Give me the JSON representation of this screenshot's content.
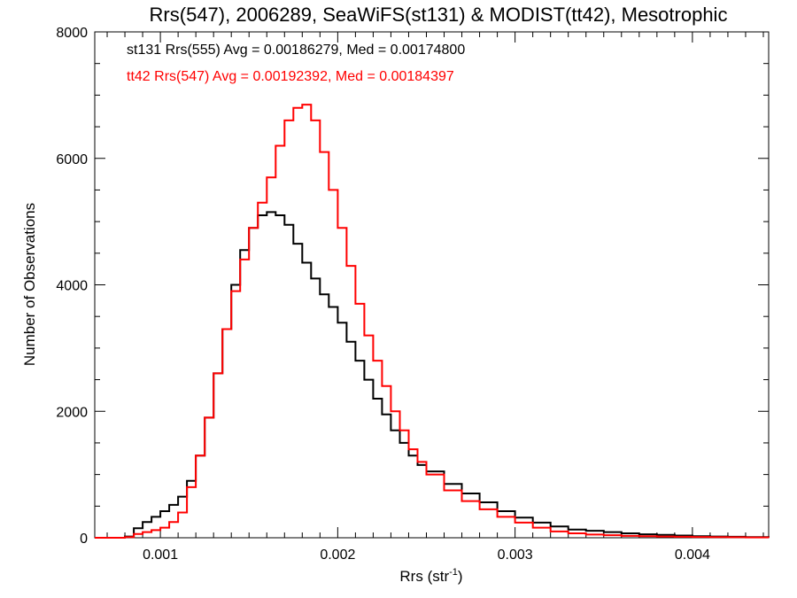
{
  "chart_data": {
    "type": "line",
    "title": "Rrs(547), 2006289, SeaWiFS(st131) & MODIST(tt42), Mesotrophic",
    "xlabel": "Rrs (str",
    "xlabel_sup": "-1",
    "xlabel_suffix": ")",
    "ylabel": "Number of Observations",
    "xlim": [
      0.00063,
      0.00443
    ],
    "ylim": [
      0,
      8000
    ],
    "x_ticks": [
      0.001,
      0.002,
      0.003,
      0.004
    ],
    "x_tick_labels": [
      "0.001",
      "0.002",
      "0.003",
      "0.004"
    ],
    "y_ticks": [
      0,
      2000,
      4000,
      6000,
      8000
    ],
    "y_tick_labels": [
      "0",
      "2000",
      "4000",
      "6000",
      "8000"
    ],
    "grid": false,
    "annotations": [
      {
        "text": "st131 Rrs(555) Avg = 0.00186279, Med = 0.00174800",
        "color": "#000000"
      },
      {
        "text": "tt42 Rrs(547) Avg = 0.00192392, Med = 0.00184397",
        "color": "#ff0000"
      }
    ],
    "series": [
      {
        "color": "#000000",
        "x": [
          0.00063,
          0.0007,
          0.00075,
          0.0008,
          0.00085,
          0.0009,
          0.00095,
          0.001,
          0.00105,
          0.0011,
          0.00115,
          0.0012,
          0.00125,
          0.0013,
          0.00135,
          0.0014,
          0.00145,
          0.0015,
          0.00155,
          0.0016,
          0.00165,
          0.0017,
          0.00175,
          0.0018,
          0.00185,
          0.0019,
          0.00195,
          0.002,
          0.00205,
          0.0021,
          0.00215,
          0.0022,
          0.00225,
          0.0023,
          0.00235,
          0.0024,
          0.00245,
          0.0025,
          0.0026,
          0.0027,
          0.0028,
          0.0029,
          0.003,
          0.0031,
          0.0032,
          0.0033,
          0.0034,
          0.0035,
          0.0036,
          0.0037,
          0.0038,
          0.0039,
          0.004,
          0.0041,
          0.0042,
          0.0043,
          0.00443
        ],
        "y": [
          0,
          0,
          0,
          20,
          150,
          250,
          330,
          420,
          520,
          650,
          900,
          1300,
          1900,
          2600,
          3300,
          4000,
          4550,
          4900,
          5100,
          5150,
          5100,
          4950,
          4650,
          4350,
          4100,
          3850,
          3650,
          3400,
          3100,
          2800,
          2500,
          2200,
          1950,
          1700,
          1500,
          1300,
          1150,
          1050,
          850,
          700,
          560,
          420,
          320,
          240,
          180,
          130,
          110,
          90,
          70,
          55,
          45,
          35,
          25,
          20,
          15,
          10,
          5
        ]
      },
      {
        "color": "#ff0000",
        "x": [
          0.00063,
          0.0007,
          0.00075,
          0.0008,
          0.00085,
          0.0009,
          0.00095,
          0.001,
          0.00105,
          0.0011,
          0.00115,
          0.0012,
          0.00125,
          0.0013,
          0.00135,
          0.0014,
          0.00145,
          0.0015,
          0.00155,
          0.0016,
          0.00165,
          0.0017,
          0.00175,
          0.0018,
          0.00185,
          0.0019,
          0.00195,
          0.002,
          0.00205,
          0.0021,
          0.00215,
          0.0022,
          0.00225,
          0.0023,
          0.00235,
          0.0024,
          0.00245,
          0.0025,
          0.0026,
          0.0027,
          0.0028,
          0.0029,
          0.003,
          0.0031,
          0.0032,
          0.0033,
          0.0034,
          0.0035,
          0.0036,
          0.0037,
          0.0038,
          0.0039,
          0.004,
          0.0041,
          0.0042,
          0.0043,
          0.00443
        ],
        "y": [
          0,
          0,
          0,
          10,
          60,
          90,
          120,
          160,
          250,
          400,
          800,
          1300,
          1900,
          2600,
          3300,
          3900,
          4400,
          4900,
          5300,
          5700,
          6200,
          6600,
          6800,
          6850,
          6600,
          6100,
          5500,
          4900,
          4300,
          3700,
          3200,
          2800,
          2400,
          2000,
          1700,
          1400,
          1200,
          1000,
          750,
          580,
          450,
          330,
          240,
          160,
          100,
          70,
          50,
          40,
          30,
          25,
          20,
          15,
          12,
          10,
          8,
          5,
          3
        ]
      }
    ]
  }
}
